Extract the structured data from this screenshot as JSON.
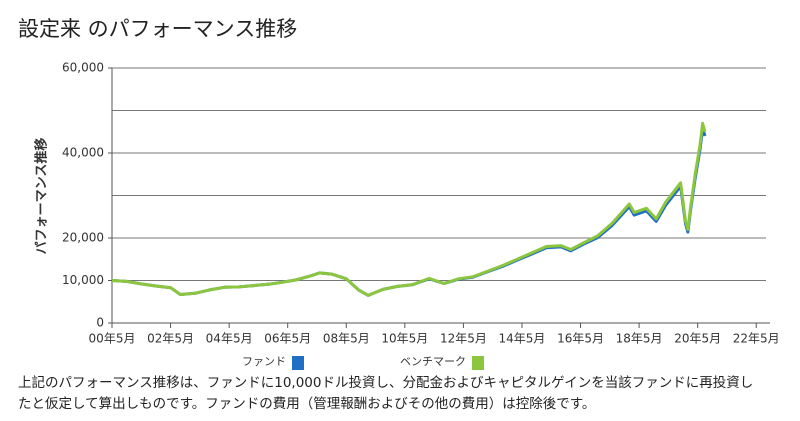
{
  "chart_data": {
    "type": "line",
    "title": "設定来 のパフォーマンス推移",
    "y_label": "パフォーマンス推移",
    "note": [
      "上記のパフォーマンス推移は、ファンドに10,000ドル投資し、分配金およびキャピタルゲインを当該ファンドに再投資し",
      "たと仮定して算出しものです。ファンドの費用（管理報酬およびその他の費用）は控除後です。"
    ],
    "x": [
      "2000-05",
      "2000-11",
      "2001-05",
      "2001-11",
      "2002-05",
      "2002-09",
      "2003-03",
      "2003-09",
      "2004-03",
      "2004-09",
      "2005-03",
      "2005-09",
      "2006-03",
      "2006-09",
      "2007-03",
      "2007-06",
      "2007-11",
      "2008-05",
      "2008-10",
      "2009-02",
      "2009-08",
      "2010-02",
      "2010-08",
      "2011-03",
      "2011-09",
      "2012-03",
      "2012-09",
      "2013-03",
      "2013-09",
      "2014-03",
      "2014-09",
      "2015-03",
      "2015-09",
      "2016-01",
      "2016-06",
      "2016-12",
      "2017-06",
      "2018-01",
      "2018-03",
      "2018-08",
      "2018-12",
      "2019-04",
      "2019-10",
      "2019-12",
      "2020-01",
      "2020-02",
      "2020-04",
      "2020-06",
      "2020-07",
      "2020-08"
    ],
    "series": [
      {
        "name": "ファンド",
        "color": "#1f6fc5",
        "values": [
          10000,
          9800,
          9200,
          8700,
          8300,
          6700,
          7000,
          7800,
          8400,
          8500,
          8800,
          9100,
          9600,
          10200,
          11200,
          11800,
          11500,
          10400,
          7800,
          6500,
          7900,
          8600,
          9000,
          10400,
          9300,
          10300,
          10800,
          12100,
          13300,
          14800,
          16200,
          17700,
          17900,
          17000,
          18500,
          20100,
          23000,
          27400,
          25400,
          26400,
          23900,
          27800,
          32200,
          23400,
          21400,
          26300,
          34100,
          41000,
          45800,
          44000
        ]
      },
      {
        "name": "ベンチマーク",
        "color": "#8cc63f",
        "values": [
          10000,
          9800,
          9200,
          8700,
          8300,
          6700,
          7000,
          7800,
          8400,
          8500,
          8800,
          9100,
          9600,
          10200,
          11200,
          11800,
          11500,
          10400,
          7800,
          6500,
          7900,
          8600,
          9000,
          10500,
          9300,
          10400,
          10900,
          12200,
          13500,
          15000,
          16500,
          18000,
          18200,
          17300,
          18800,
          20500,
          23500,
          28000,
          26000,
          27000,
          24500,
          28500,
          33000,
          24000,
          22000,
          27000,
          35000,
          42000,
          47000,
          45000
        ]
      }
    ],
    "xlim": [
      "2000-05",
      "2022-09"
    ],
    "xticks": [
      {
        "value": "2000-05",
        "label": "00年5月"
      },
      {
        "value": "2002-05",
        "label": "02年5月"
      },
      {
        "value": "2004-05",
        "label": "04年5月"
      },
      {
        "value": "2006-05",
        "label": "06年5月"
      },
      {
        "value": "2008-05",
        "label": "08年5月"
      },
      {
        "value": "2010-05",
        "label": "10年5月"
      },
      {
        "value": "2012-05",
        "label": "12年5月"
      },
      {
        "value": "2014-05",
        "label": "14年5月"
      },
      {
        "value": "2016-05",
        "label": "16年5月"
      },
      {
        "value": "2018-05",
        "label": "18年5月"
      },
      {
        "value": "2020-05",
        "label": "20年5月"
      },
      {
        "value": "2022-05",
        "label": "22年5月"
      }
    ],
    "ylim": [
      0,
      60000
    ],
    "yticks": [
      0,
      {
        "value": 10000,
        "label": "10,000"
      },
      {
        "value": 20000,
        "label": "20,000"
      },
      {
        "value": 40000,
        "label": "40,000"
      },
      {
        "value": 60000,
        "label": "60,000"
      }
    ],
    "ygrid": [
      10000,
      20000,
      30000,
      40000,
      50000,
      60000
    ],
    "grid": true
  }
}
